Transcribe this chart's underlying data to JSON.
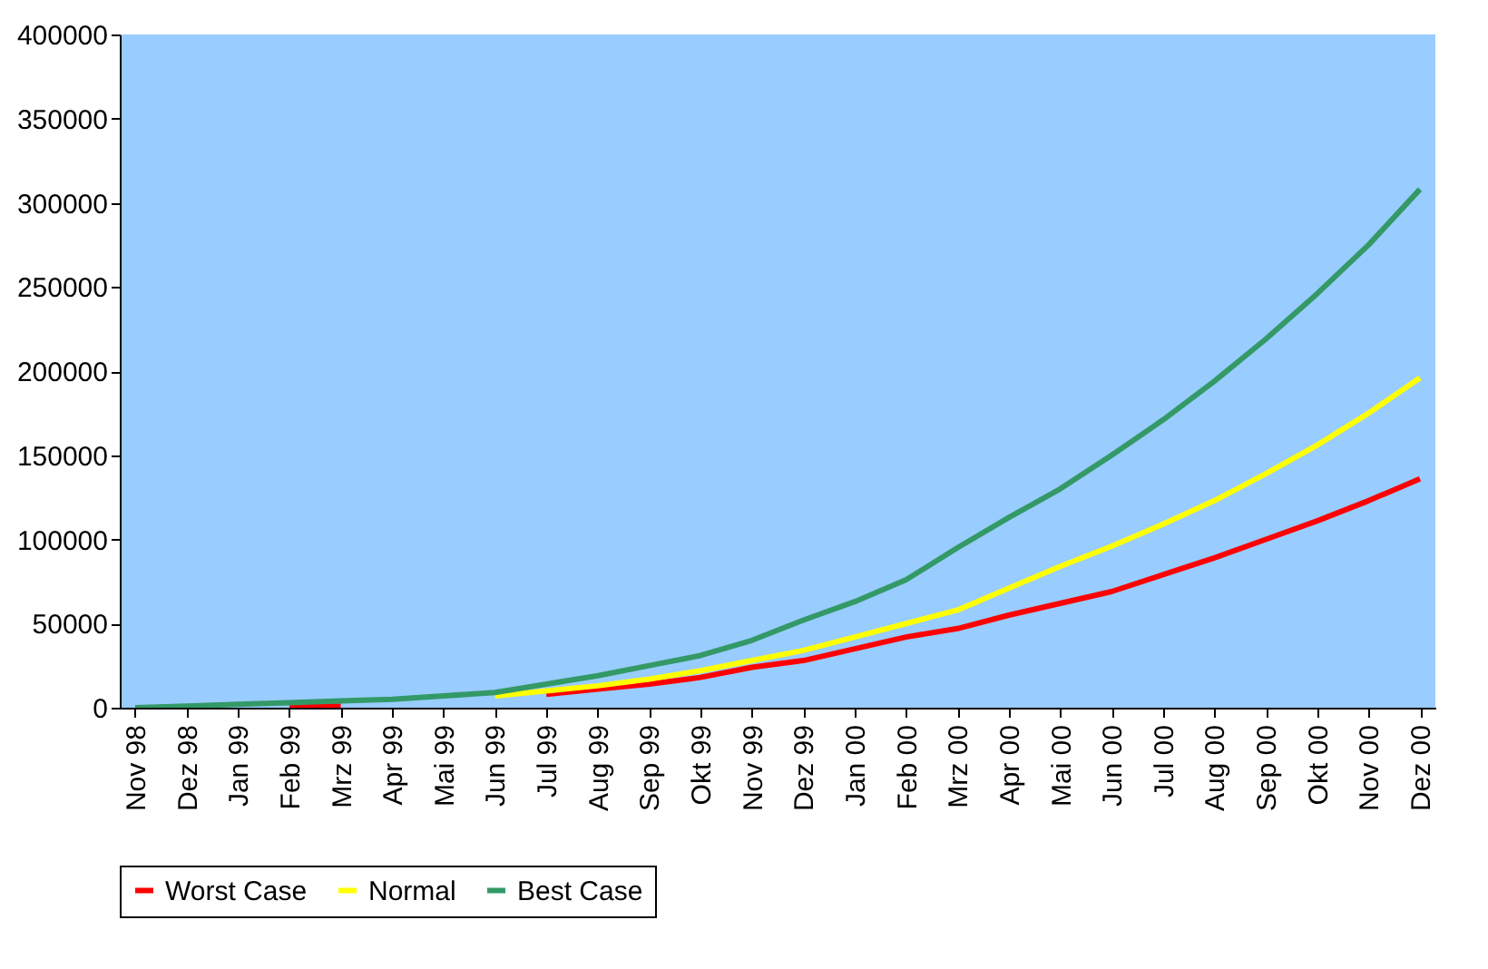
{
  "chart_data": {
    "type": "line",
    "categories": [
      "Nov 98",
      "Dez 98",
      "Jan 99",
      "Feb 99",
      "Mrz 99",
      "Apr 99",
      "Mai 99",
      "Jun 99",
      "Jul 99",
      "Aug 99",
      "Sep 99",
      "Okt 99",
      "Nov 99",
      "Dez 99",
      "Jan 00",
      "Feb 00",
      "Mrz 00",
      "Apr 00",
      "Mai 00",
      "Jun 00",
      "Jul 00",
      "Aug 00",
      "Sep 00",
      "Okt 00",
      "Nov 00",
      "Dez 00"
    ],
    "series": [
      {
        "name": "Worst Case",
        "color": "#ff0000",
        "values": [
          null,
          null,
          null,
          1000,
          1000,
          null,
          null,
          null,
          8000,
          11000,
          14000,
          18000,
          24000,
          28000,
          35000,
          42000,
          47000,
          55000,
          62000,
          69000,
          79000,
          89000,
          100000,
          111000,
          123000,
          136000
        ]
      },
      {
        "name": "Normal",
        "color": "#ffff00",
        "values": [
          null,
          null,
          null,
          null,
          null,
          null,
          null,
          7000,
          10000,
          13000,
          17000,
          22000,
          28000,
          34000,
          42000,
          50000,
          58000,
          71000,
          84000,
          96000,
          109000,
          123000,
          139000,
          156000,
          175000,
          196000
        ]
      },
      {
        "name": "Best Case",
        "color": "#339966",
        "values": [
          0,
          1000,
          2000,
          3000,
          4000,
          5000,
          7000,
          9000,
          14000,
          19000,
          25000,
          31000,
          40000,
          52000,
          63000,
          76000,
          95000,
          113000,
          130000,
          150000,
          171000,
          194000,
          219000,
          246000,
          275000,
          308000
        ]
      }
    ],
    "ylim": [
      0,
      400000
    ],
    "yticks": [
      0,
      50000,
      100000,
      150000,
      200000,
      250000,
      300000,
      350000,
      400000
    ],
    "legend": "bottom",
    "marker": "none",
    "line_style": "solid"
  }
}
